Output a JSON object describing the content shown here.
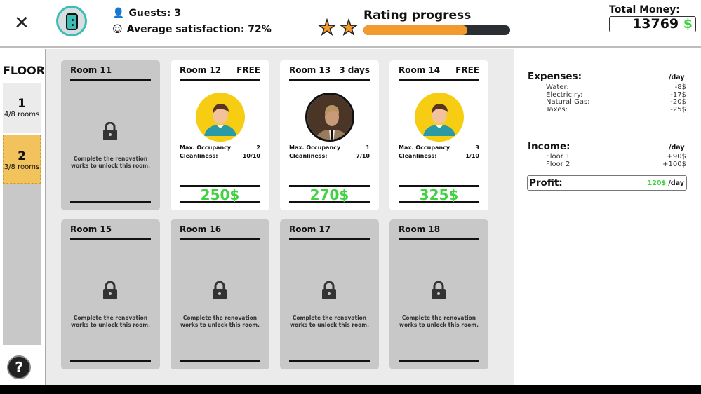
{
  "header": {
    "guests": "Guests: 3",
    "satisfaction": "Average satisfaction: 72%",
    "rating_title": "Rating progress",
    "rating_stars": 2,
    "rating_progress": 0.71,
    "money_label": "Total Money:",
    "money_value": "13769",
    "currency": "$"
  },
  "sidebar": {
    "title": "FLOOR",
    "floors": [
      {
        "number": "1",
        "rooms": "4/8 rooms"
      },
      {
        "number": "2",
        "rooms": "3/8 rooms",
        "selected": true
      }
    ],
    "help": "?"
  },
  "rooms": [
    {
      "name": "Room 11",
      "locked": true,
      "message": "Complete the renovation works to unlock this room."
    },
    {
      "name": "Room 12",
      "status": "FREE",
      "occ_label": "Max. Occupancy",
      "occupancy": "2",
      "clean_label": "Cleanliness:",
      "cleanliness": "10/10",
      "price": "250$",
      "avatar": "default-avatar"
    },
    {
      "name": "Room 13",
      "status": "3 days",
      "occ_label": "Max. Occupancy",
      "occupancy": "1",
      "clean_label": "Cleanliness:",
      "cleanliness": "7/10",
      "price": "270$",
      "avatar": "guest-photo"
    },
    {
      "name": "Room 14",
      "status": "FREE",
      "occ_label": "Max. Occupancy",
      "occupancy": "3",
      "clean_label": "Cleanliness:",
      "cleanliness": "1/10",
      "price": "325$",
      "avatar": "default-avatar"
    },
    {
      "name": "Room 15",
      "locked": true,
      "message": "Complete the renovation works to unlock this room."
    },
    {
      "name": "Room 16",
      "locked": true,
      "message": "Complete the renovation works to unlock this room."
    },
    {
      "name": "Room 17",
      "locked": true,
      "message": "Complete the renovation works to unlock this room."
    },
    {
      "name": "Room 18",
      "locked": true,
      "message": "Complete the renovation works to unlock this room."
    }
  ],
  "finance": {
    "expenses_title": "Expenses:",
    "per_day": "/day",
    "expenses": [
      {
        "label": "Water:",
        "value": "-8$"
      },
      {
        "label": "Electriciry:",
        "value": "-17$"
      },
      {
        "label": "Natural Gas:",
        "value": "-20$"
      },
      {
        "label": "Taxes:",
        "value": "-25$"
      }
    ],
    "income_title": "Income:",
    "income": [
      {
        "label": "Floor 1",
        "value": "+90$"
      },
      {
        "label": "Floor 2",
        "value": "+100$"
      }
    ],
    "profit_label": "Profit:",
    "profit_value": "120$",
    "profit_unit": "/day"
  },
  "colors": {
    "accent": "#f29a2e",
    "money_green": "#3fd33f",
    "selected_floor": "#f2c35c",
    "teal": "#3bbdb5"
  }
}
